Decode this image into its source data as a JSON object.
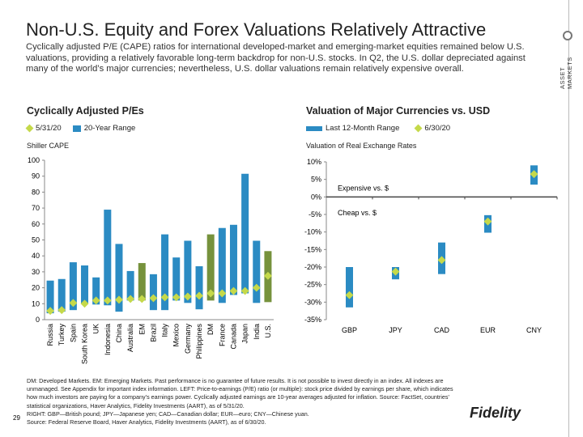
{
  "header": {
    "title": "Non-U.S. Equity and Forex Valuations Relatively Attractive",
    "subtitle": "Cyclically adjusted P/E (CAPE) ratios for international developed-market and emerging-market equities remained below U.S. valuations, providing a relatively favorable long-term backdrop for non-U.S. stocks. In Q2, the U.S. dollar depreciated against many of the world’s major currencies; nevertheless, U.S. dollar valuations remain relatively expensive overall.",
    "side_label": "ASSET MARKETS"
  },
  "colors": {
    "range": "#2b8bc3",
    "aggregate": "#76923c",
    "marker": "#c5d94a"
  },
  "chart_data": [
    {
      "type": "range-bar",
      "title": "Cyclically Adjusted P/Es",
      "ylabel": "Shiller CAPE",
      "ylim": [
        0,
        100
      ],
      "yticks": [
        0,
        10,
        20,
        30,
        40,
        50,
        60,
        70,
        80,
        90,
        100
      ],
      "legend": {
        "marker": "5/31/20",
        "range": "20-Year Range"
      },
      "categories": [
        "Russia",
        "Turkey",
        "Spain",
        "South Korea",
        "UK",
        "Indonesia",
        "China",
        "Australia",
        "EM",
        "Brazil",
        "Italy",
        "Mexico",
        "Germany",
        "Philippines",
        "DM",
        "France",
        "Canada",
        "Japan",
        "India",
        "U.S."
      ],
      "low": [
        4,
        5,
        6,
        10,
        9.5,
        9,
        5,
        12,
        12,
        6,
        6,
        12,
        10.5,
        6.5,
        12,
        10.5,
        15.5,
        16.5,
        10.5,
        11
      ],
      "high": [
        24.5,
        25.5,
        36,
        34,
        26.5,
        69,
        47.5,
        30.5,
        35.5,
        28.5,
        53.5,
        39,
        49.5,
        33.5,
        53.5,
        57.5,
        59.5,
        91.5,
        49.5,
        43
      ],
      "current": [
        5.5,
        6,
        10.5,
        10,
        12,
        12,
        12.5,
        13,
        13,
        13.5,
        14,
        14,
        14.5,
        15,
        16.5,
        16.5,
        18,
        18,
        20,
        27.5
      ],
      "aggregate": [
        "EM",
        "DM",
        "U.S."
      ]
    },
    {
      "type": "range-bar",
      "title": "Valuation of Major Currencies vs. USD",
      "ylabel": "Valuation of Real Exchange Rates",
      "ylim": [
        -35,
        10
      ],
      "yticks": [
        "10%",
        "5%",
        "0%",
        "-5%",
        "-10%",
        "-15%",
        "-20%",
        "-25%",
        "-30%",
        "-35%"
      ],
      "legend": {
        "range": "Last 12-Month Range",
        "marker": "6/30/20"
      },
      "annotations": {
        "above": "Expensive vs. $",
        "below": "Cheap vs. $"
      },
      "categories": [
        "GBP",
        "JPY",
        "CAD",
        "EUR",
        "CNY"
      ],
      "low": [
        -31.5,
        -23.5,
        -22,
        -10.2,
        3.5
      ],
      "high": [
        -20,
        -20,
        -13,
        -5.2,
        9
      ],
      "current": [
        -28,
        -21.3,
        -18,
        -7,
        6.5
      ]
    }
  ],
  "footnote": [
    "DM: Developed Markets. EM: Emerging Markets. Past performance is no guarantee of future results. It is not possible to invest directly in an index. All indexes are unmanaged. See Appendix for important index information.  LEFT: Price-to-earnings (P/E) ratio (or multiple): stock price divided by earnings per share, which indicates how much investors are paying for a company’s earnings power. Cyclically adjusted earnings are 10-year averages adjusted for inflation. Source: FactSet, countries’ statistical organizations, Haver Analytics, Fidelity Investments (AART), as of 5/31/20.",
    "RIGHT: GBP—British pound; JPY—Japanese yen; CAD—Canadian dollar; EUR—euro; CNY—Chinese yuan.",
    "Source: Federal Reserve Board, Haver Analytics, Fidelity Investments (AART), as of 6/30/20."
  ],
  "page_number": "29",
  "logo": "Fidelity"
}
